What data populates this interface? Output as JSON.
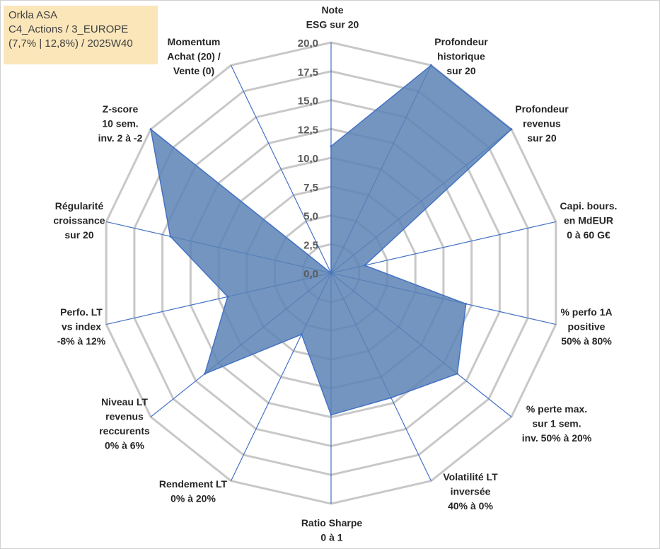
{
  "info_box": {
    "line1": "Orkla ASA",
    "line2": "C4_Actions / 3_EUROPE",
    "line3": "(7,7% | 12,8%) / 2025W40"
  },
  "colors": {
    "fill": "#5b83b5",
    "stroke": "#4472c4",
    "grid": "#c8c8c8",
    "spoke": "#4472c4",
    "info_bg": "#fbe6ba"
  },
  "chart_data": {
    "type": "radar",
    "title": "",
    "rmin": 0,
    "rmax": 20,
    "ticks": [
      "0,0",
      "2,5",
      "5,0",
      "7,5",
      "10,0",
      "12,5",
      "15,0",
      "17,5",
      "20,0"
    ],
    "tick_values": [
      0,
      2.5,
      5,
      7.5,
      10,
      12.5,
      15,
      17.5,
      20
    ],
    "categories": [
      [
        "Note",
        "ESG sur 20"
      ],
      [
        "Profondeur",
        "historique",
        "sur 20"
      ],
      [
        "Profondeur",
        "revenus",
        "sur 20"
      ],
      [
        "Capi. bours.",
        "en MdEUR",
        "0 à 60 G€"
      ],
      [
        "% perfo 1A",
        "positive",
        "50% à 80%"
      ],
      [
        "% perte max.",
        "sur 1 sem.",
        "inv. 50% à 20%"
      ],
      [
        "Volatilité LT",
        "inversée",
        "40% à 0%"
      ],
      [
        "Ratio Sharpe",
        "0 à 1"
      ],
      [
        "Rendement LT",
        "0% à 20%"
      ],
      [
        "Niveau LT",
        "revenus",
        "reccurents",
        "0% à 6%"
      ],
      [
        "Perfo. LT",
        "vs index",
        "-8% à 12%"
      ],
      [
        "Régularité",
        "croissance",
        "sur 20"
      ],
      [
        "Z-score",
        "10 sem.",
        "inv. 2 à -2"
      ],
      [
        "Momentum",
        "Achat (20) /",
        "Vente (0)"
      ]
    ],
    "series": [
      {
        "name": "Orkla ASA",
        "values": [
          11,
          20,
          20,
          3,
          12,
          14,
          12,
          12.3,
          5.9,
          14,
          9.2,
          14.3,
          20,
          0
        ]
      }
    ]
  }
}
